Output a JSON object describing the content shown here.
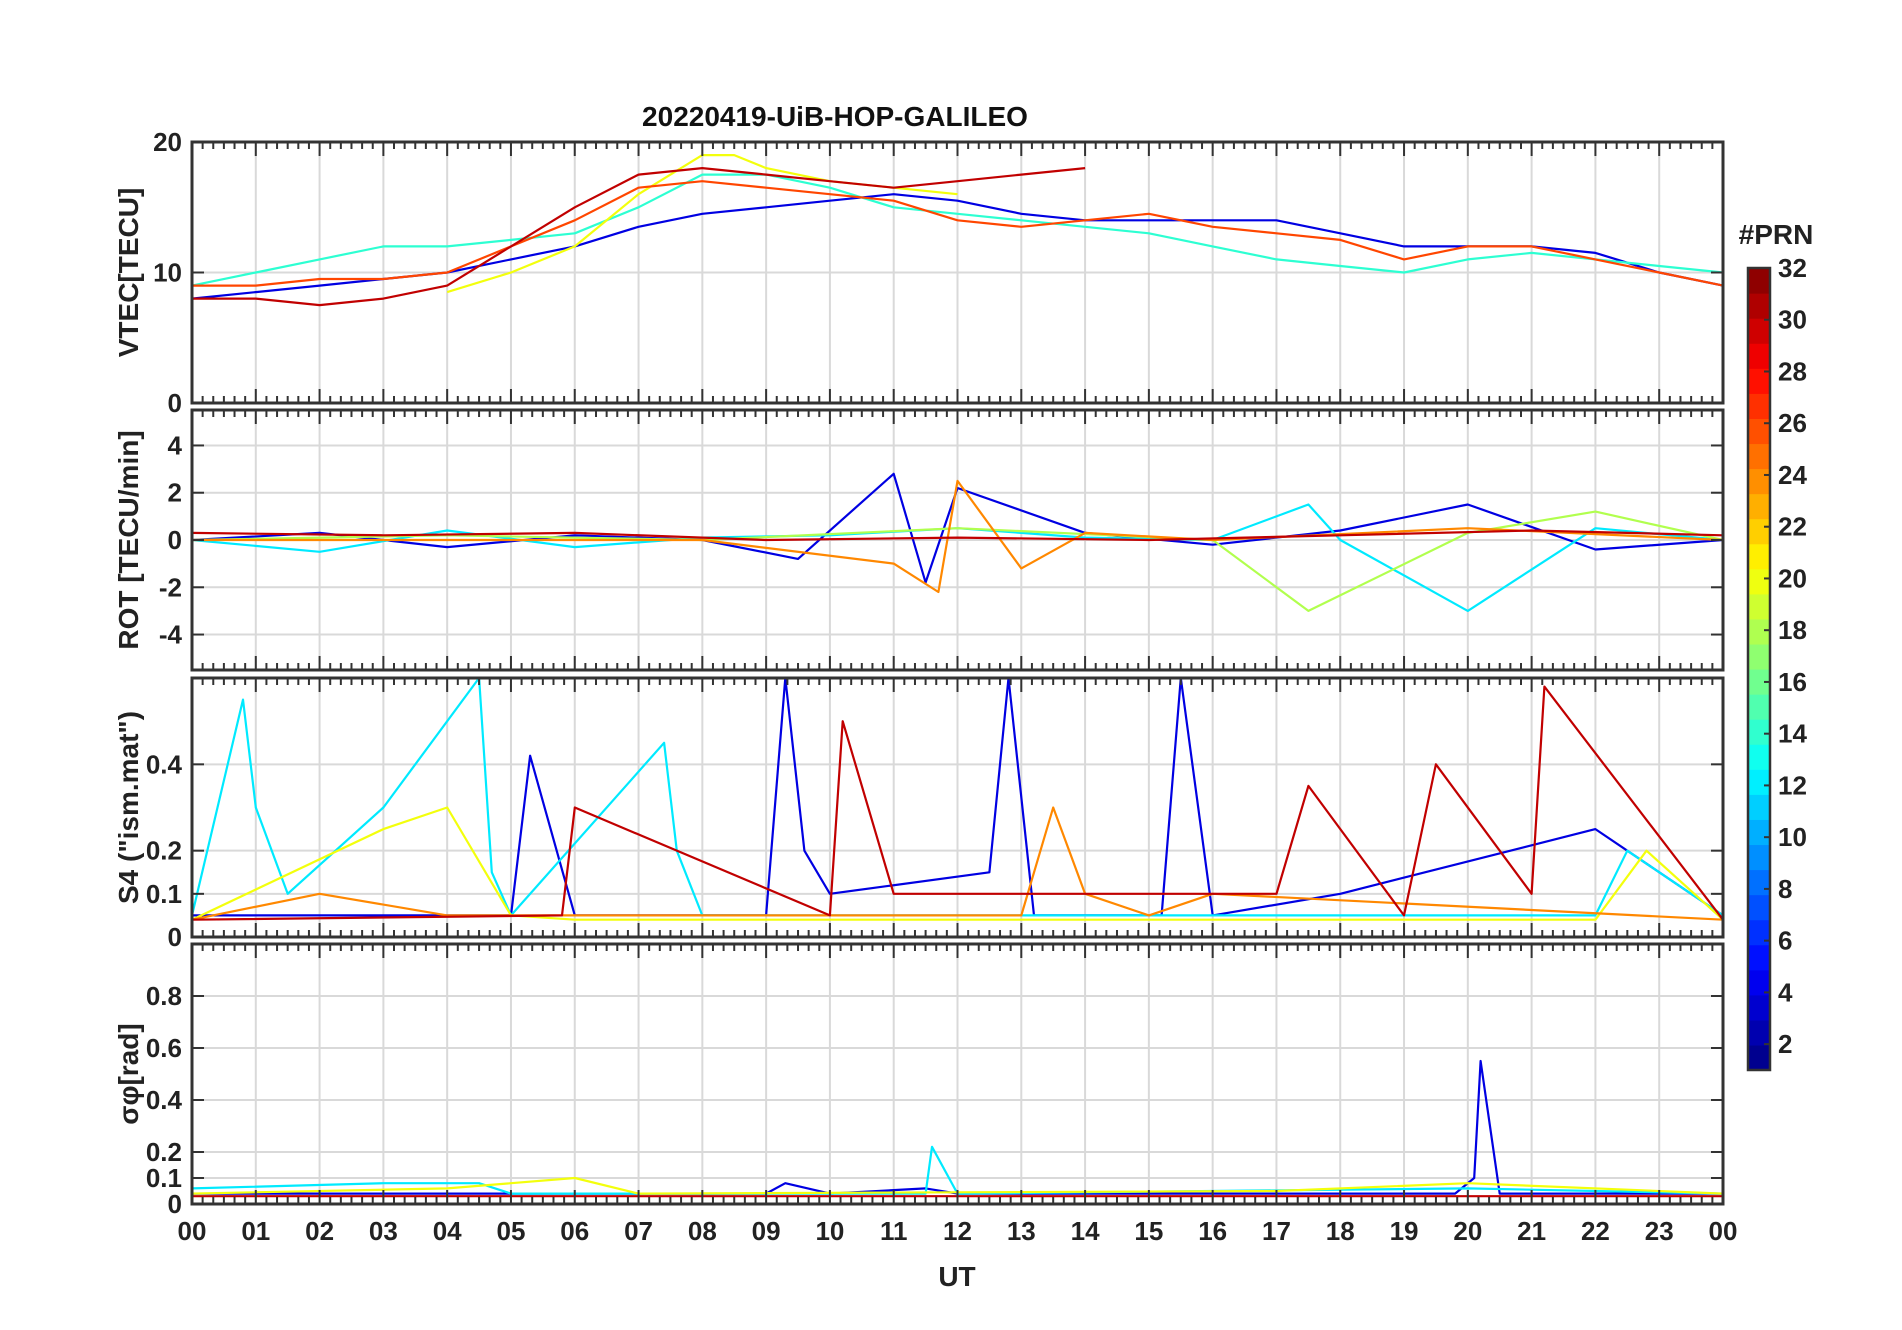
{
  "chart_data": {
    "type": "line",
    "title": "20220419-UiB-HOP-GALILEO",
    "xlabel": "UT",
    "x_ticks": [
      "00",
      "01",
      "02",
      "03",
      "04",
      "05",
      "06",
      "07",
      "08",
      "09",
      "10",
      "11",
      "12",
      "13",
      "14",
      "15",
      "16",
      "17",
      "18",
      "19",
      "20",
      "21",
      "22",
      "23",
      "00"
    ],
    "x_range_hours": [
      0,
      24
    ],
    "colorbar": {
      "label": "#PRN",
      "range": [
        1,
        32
      ],
      "ticks": [
        "2",
        "4",
        "6",
        "8",
        "10",
        "12",
        "14",
        "16",
        "18",
        "20",
        "22",
        "24",
        "26",
        "28",
        "30",
        "32"
      ],
      "colormap": "jet"
    },
    "panels": [
      {
        "name": "vtec",
        "ylabel": "VTEC[TECU]",
        "ylim": [
          0,
          20
        ],
        "y_ticks": [
          0,
          10,
          20
        ],
        "y_tick_labels": [
          "0",
          "10",
          "20"
        ],
        "series": [
          {
            "prn": 4,
            "x": [
              0,
              1,
              2,
              3,
              4,
              5,
              6,
              7,
              8,
              9,
              10,
              11,
              12,
              13,
              14,
              15,
              16,
              17,
              18,
              19,
              20,
              21,
              22,
              23,
              24
            ],
            "y": [
              8,
              8.5,
              9,
              9.5,
              10,
              11,
              12,
              13.5,
              14.5,
              15,
              15.5,
              16,
              15.5,
              14.5,
              14,
              14,
              14,
              14,
              13,
              12,
              12,
              12,
              11.5,
              10,
              9
            ]
          },
          {
            "prn": 14,
            "x": [
              0,
              1,
              2,
              3,
              4,
              5,
              6,
              7,
              8,
              9,
              10,
              11,
              12,
              13,
              14,
              15,
              16,
              17,
              18,
              19,
              20,
              21,
              22,
              23,
              24
            ],
            "y": [
              9,
              10,
              11,
              12,
              12,
              12.5,
              13,
              15,
              17.5,
              17.5,
              16.5,
              15,
              14.5,
              14,
              13.5,
              13,
              12,
              11,
              10.5,
              10,
              11,
              11.5,
              11,
              10.5,
              10
            ]
          },
          {
            "prn": 20,
            "x": [
              4,
              5,
              6,
              7,
              8,
              8.5,
              9,
              10,
              11,
              12
            ],
            "y": [
              8.5,
              10,
              12,
              16,
              19,
              19,
              18,
              17,
              16.5,
              16
            ]
          },
          {
            "prn": 26,
            "x": [
              0,
              1,
              2,
              3,
              4,
              5,
              6,
              7,
              8,
              9,
              10,
              11,
              12,
              13,
              14,
              15,
              16,
              17,
              18,
              19,
              20,
              21,
              22,
              23,
              24
            ],
            "y": [
              9,
              9,
              9.5,
              9.5,
              10,
              12,
              14,
              16.5,
              17,
              16.5,
              16,
              15.5,
              14,
              13.5,
              14,
              14.5,
              13.5,
              13,
              12.5,
              11,
              12,
              12,
              11,
              10,
              9
            ]
          },
          {
            "prn": 30,
            "x": [
              0,
              1,
              2,
              3,
              4,
              5,
              6,
              7,
              8,
              9,
              10,
              11,
              12,
              13,
              14
            ],
            "y": [
              8,
              8,
              7.5,
              8,
              9,
              12,
              15,
              17.5,
              18,
              17.5,
              17,
              16.5,
              17,
              17.5,
              18
            ]
          }
        ]
      },
      {
        "name": "rot",
        "ylabel": "ROT [TECU/min]",
        "ylim": [
          -5.5,
          5.5
        ],
        "y_ticks": [
          -4,
          -2,
          0,
          2,
          4
        ],
        "y_tick_labels": [
          "-4",
          "-2",
          "0",
          "2",
          "4"
        ],
        "series": [
          {
            "prn": 4,
            "x": [
              0,
              2,
              4,
              6,
              8,
              9.5,
              11,
              11.5,
              12,
              14,
              16,
              18,
              20,
              22,
              24
            ],
            "y": [
              0,
              0.3,
              -0.3,
              0.2,
              0,
              -0.8,
              2.8,
              -1.8,
              2.2,
              0.3,
              -0.2,
              0.4,
              1.5,
              -0.4,
              0
            ]
          },
          {
            "prn": 12,
            "x": [
              0,
              2,
              4,
              6,
              8,
              10,
              12,
              14,
              16,
              17.5,
              18,
              20,
              22,
              24
            ],
            "y": [
              0,
              -0.5,
              0.4,
              -0.3,
              0.1,
              0.2,
              0.5,
              0.1,
              0,
              1.5,
              0,
              -3,
              0.5,
              0
            ]
          },
          {
            "prn": 18,
            "x": [
              0,
              4,
              8,
              12,
              16,
              17.5,
              20,
              22,
              24
            ],
            "y": [
              0,
              0.2,
              0,
              0.5,
              0,
              -3,
              0.3,
              1.2,
              0
            ]
          },
          {
            "prn": 24,
            "x": [
              0,
              4,
              8,
              11,
              11.7,
              12,
              13,
              14,
              16,
              20,
              24
            ],
            "y": [
              0,
              0,
              0,
              -1,
              -2.2,
              2.5,
              -1.2,
              0.3,
              0,
              0.5,
              0
            ]
          },
          {
            "prn": 30,
            "x": [
              0,
              3,
              6,
              9,
              12,
              15,
              18,
              21,
              24
            ],
            "y": [
              0.3,
              0.2,
              0.3,
              0,
              0.1,
              0,
              0.2,
              0.4,
              0.2
            ]
          }
        ]
      },
      {
        "name": "s4",
        "ylabel": "S4 (\"ism.mat\")",
        "ylim": [
          0,
          0.6
        ],
        "y_ticks": [
          0,
          0.1,
          0.2,
          0.4
        ],
        "y_tick_labels": [
          "0",
          "0.1",
          "0.2",
          "0.4"
        ],
        "series": [
          {
            "prn": 4,
            "x": [
              0,
              5,
              5.3,
              6,
              9,
              9.3,
              9.6,
              10,
              12.5,
              12.8,
              13.2,
              15.2,
              15.5,
              16,
              18,
              22,
              24
            ],
            "y": [
              0.05,
              0.05,
              0.42,
              0.05,
              0.05,
              0.6,
              0.2,
              0.1,
              0.15,
              0.6,
              0.05,
              0.05,
              0.6,
              0.05,
              0.1,
              0.25,
              0.05
            ]
          },
          {
            "prn": 12,
            "x": [
              0,
              0.8,
              1,
              1.5,
              3,
              4.5,
              4.7,
              5,
              7.4,
              7.6,
              8,
              22,
              22.5,
              24
            ],
            "y": [
              0.05,
              0.55,
              0.3,
              0.1,
              0.3,
              0.6,
              0.15,
              0.05,
              0.45,
              0.2,
              0.05,
              0.05,
              0.2,
              0.05
            ]
          },
          {
            "prn": 20,
            "x": [
              0,
              3,
              4,
              5,
              6,
              22,
              22.8,
              24
            ],
            "y": [
              0.04,
              0.25,
              0.3,
              0.05,
              0.04,
              0.04,
              0.2,
              0.04
            ]
          },
          {
            "prn": 24,
            "x": [
              0,
              2,
              4,
              13,
              13.5,
              14,
              15,
              16,
              24
            ],
            "y": [
              0.04,
              0.1,
              0.05,
              0.05,
              0.3,
              0.1,
              0.05,
              0.1,
              0.04
            ]
          },
          {
            "prn": 30,
            "x": [
              0,
              5.8,
              6,
              10,
              10.2,
              11,
              17,
              17.5,
              19,
              19.5,
              21,
              21.2,
              24
            ],
            "y": [
              0.04,
              0.05,
              0.3,
              0.05,
              0.5,
              0.1,
              0.1,
              0.35,
              0.05,
              0.4,
              0.1,
              0.58,
              0.04
            ]
          }
        ]
      },
      {
        "name": "sigma_phi",
        "ylabel": "σφ[rad]",
        "ylim": [
          0,
          1
        ],
        "y_ticks": [
          0,
          0.1,
          0.2,
          0.4,
          0.6,
          0.8
        ],
        "y_tick_labels": [
          "0",
          "0.1",
          "0.2",
          "0.4",
          "0.6",
          "0.8"
        ],
        "series": [
          {
            "prn": 4,
            "x": [
              0,
              9,
              9.3,
              10,
              11.5,
              12,
              19.8,
              20.1,
              20.2,
              20.5,
              24
            ],
            "y": [
              0.04,
              0.04,
              0.08,
              0.04,
              0.06,
              0.04,
              0.04,
              0.1,
              0.55,
              0.04,
              0.04
            ]
          },
          {
            "prn": 12,
            "x": [
              0,
              3,
              4.5,
              5,
              11.5,
              11.6,
              12,
              20,
              24
            ],
            "y": [
              0.06,
              0.08,
              0.08,
              0.04,
              0.04,
              0.22,
              0.04,
              0.06,
              0.04
            ]
          },
          {
            "prn": 20,
            "x": [
              0,
              4,
              6,
              7,
              17,
              20,
              24
            ],
            "y": [
              0.04,
              0.06,
              0.1,
              0.04,
              0.05,
              0.08,
              0.04
            ]
          },
          {
            "prn": 30,
            "x": [
              0,
              6,
              12,
              18,
              24
            ],
            "y": [
              0.03,
              0.03,
              0.03,
              0.03,
              0.03
            ]
          }
        ]
      }
    ]
  }
}
